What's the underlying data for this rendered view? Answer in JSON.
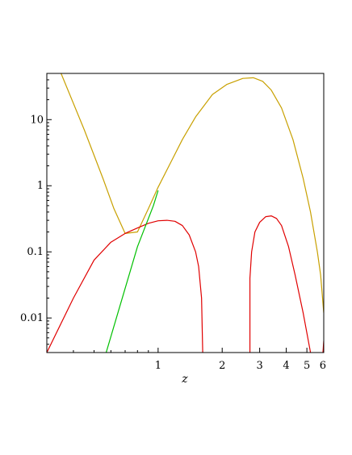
{
  "chart_data": {
    "type": "line",
    "title": "",
    "xlabel": "z",
    "ylabel": "",
    "xscale": "log",
    "yscale": "log",
    "xlim": [
      0.3,
      6
    ],
    "ylim": [
      0.003,
      50
    ],
    "grid": false,
    "x_ticks": [
      {
        "value": 1,
        "label": "1"
      },
      {
        "value": 2,
        "label": "2"
      },
      {
        "value": 3,
        "label": "3"
      },
      {
        "value": 4,
        "label": "4"
      },
      {
        "value": 5,
        "label": "5"
      },
      {
        "value": 6,
        "label": "6"
      }
    ],
    "y_ticks": [
      {
        "value": 0.01,
        "label": "0.01"
      },
      {
        "value": 0.1,
        "label": "0.1"
      },
      {
        "value": 1,
        "label": "1"
      },
      {
        "value": 10,
        "label": "10"
      }
    ],
    "series": [
      {
        "color": "#C8A000",
        "points": [
          [
            0.35,
            50
          ],
          [
            0.45,
            7
          ],
          [
            0.55,
            1.3
          ],
          [
            0.62,
            0.45
          ],
          [
            0.7,
            0.19
          ],
          [
            0.8,
            0.2
          ],
          [
            0.9,
            0.45
          ],
          [
            1.0,
            0.95
          ],
          [
            1.15,
            2.3
          ],
          [
            1.3,
            5.0
          ],
          [
            1.5,
            11
          ],
          [
            1.8,
            24
          ],
          [
            2.1,
            34
          ],
          [
            2.5,
            42
          ],
          [
            2.8,
            43
          ],
          [
            3.1,
            38
          ],
          [
            3.4,
            28
          ],
          [
            3.8,
            15
          ],
          [
            4.3,
            5.0
          ],
          [
            4.8,
            1.3
          ],
          [
            5.2,
            0.4
          ],
          [
            5.6,
            0.1
          ],
          [
            5.8,
            0.045
          ],
          [
            6.0,
            0.012
          ]
        ]
      },
      {
        "color": "#E00000",
        "segments": [
          [
            [
              0.3,
              0.003
            ],
            [
              0.4,
              0.02
            ],
            [
              0.5,
              0.075
            ],
            [
              0.6,
              0.14
            ],
            [
              0.7,
              0.19
            ],
            [
              0.8,
              0.23
            ],
            [
              0.9,
              0.27
            ],
            [
              1.0,
              0.295
            ],
            [
              1.1,
              0.3
            ],
            [
              1.2,
              0.29
            ],
            [
              1.3,
              0.25
            ],
            [
              1.4,
              0.18
            ],
            [
              1.5,
              0.1
            ],
            [
              1.55,
              0.06
            ],
            [
              1.6,
              0.02
            ],
            [
              1.62,
              0.003
            ]
          ],
          [
            [
              2.7,
              0.003
            ],
            [
              2.7,
              0.04
            ],
            [
              2.75,
              0.1
            ],
            [
              2.85,
              0.2
            ],
            [
              3.0,
              0.28
            ],
            [
              3.2,
              0.34
            ],
            [
              3.4,
              0.35
            ],
            [
              3.6,
              0.32
            ],
            [
              3.8,
              0.25
            ],
            [
              4.1,
              0.12
            ],
            [
              4.4,
              0.045
            ],
            [
              4.8,
              0.012
            ],
            [
              5.2,
              0.003
            ]
          ],
          [
            [
              5.95,
              0.003
            ],
            [
              6.0,
              0.0045
            ]
          ]
        ]
      },
      {
        "color": "#00C000",
        "points": [
          [
            0.57,
            0.003
          ],
          [
            0.8,
            0.12
          ],
          [
            0.95,
            0.5
          ],
          [
            1.0,
            0.85
          ]
        ]
      }
    ]
  }
}
